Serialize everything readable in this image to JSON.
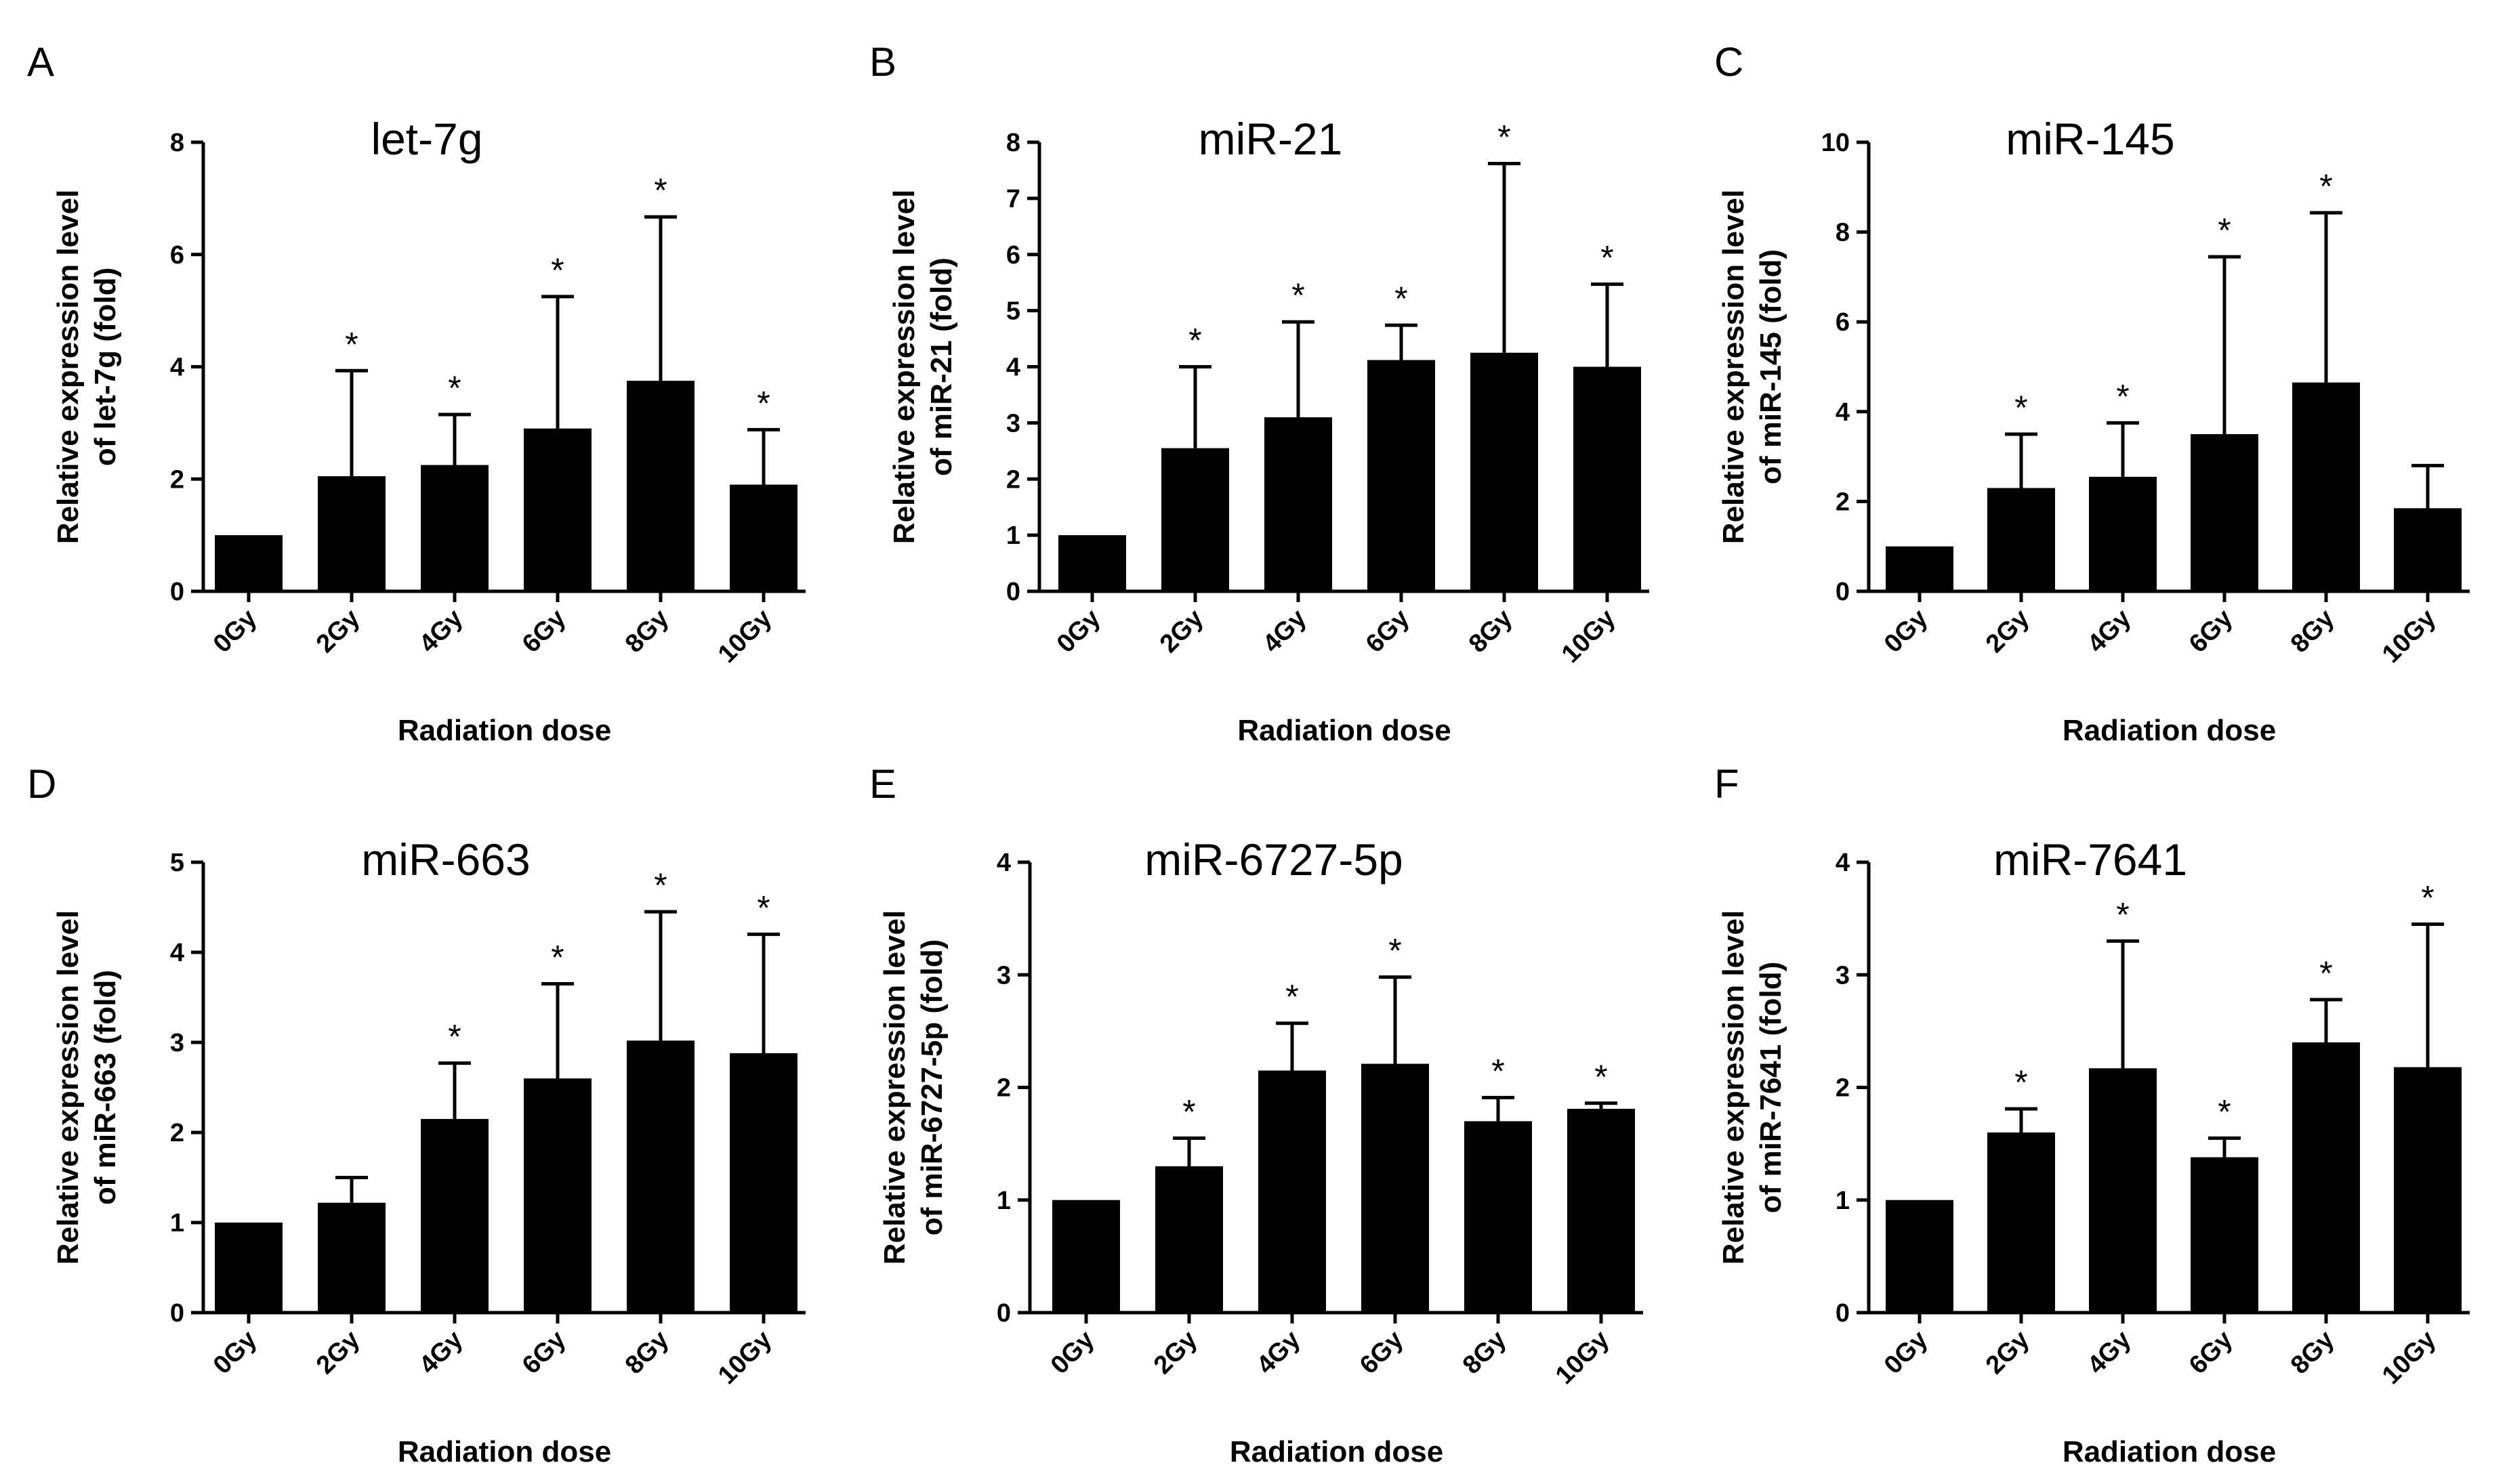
{
  "chart_data": [
    {
      "type": "bar",
      "panel": "A",
      "title": "let-7g",
      "ylabel": [
        "Relative expression level",
        "of let-7g (fold)"
      ],
      "xlabel": "Radiation dose",
      "categories": [
        "0Gy",
        "2Gy",
        "4Gy",
        "6Gy",
        "8Gy",
        "10Gy"
      ],
      "values": [
        1.0,
        2.05,
        2.25,
        2.9,
        3.75,
        1.9
      ],
      "errors": [
        0,
        1.88,
        0.9,
        2.35,
        2.92,
        0.98
      ],
      "significance": [
        "",
        "*",
        "*",
        "*",
        "*",
        "*"
      ],
      "ylim": [
        0,
        8
      ],
      "yticks": [
        0,
        2,
        4,
        6,
        8
      ]
    },
    {
      "type": "bar",
      "panel": "B",
      "title": "miR-21",
      "ylabel": [
        "Relative expression level",
        "of miR-21 (fold)"
      ],
      "xlabel": "Radiation dose",
      "categories": [
        "0Gy",
        "2Gy",
        "4Gy",
        "6Gy",
        "8Gy",
        "10Gy"
      ],
      "values": [
        1.0,
        2.55,
        3.1,
        4.12,
        4.25,
        4.0
      ],
      "errors": [
        0,
        1.45,
        1.7,
        0.62,
        3.37,
        1.47
      ],
      "significance": [
        "",
        "*",
        "*",
        "*",
        "*",
        "*"
      ],
      "ylim": [
        0,
        8
      ],
      "yticks": [
        0,
        1,
        2,
        3,
        4,
        5,
        6,
        7,
        8
      ]
    },
    {
      "type": "bar",
      "panel": "C",
      "title": "miR-145",
      "ylabel": [
        "Relative expression level",
        "of miR-145 (fold)"
      ],
      "xlabel": "Radiation dose",
      "categories": [
        "0Gy",
        "2Gy",
        "4Gy",
        "6Gy",
        "8Gy",
        "10Gy"
      ],
      "values": [
        1.0,
        2.3,
        2.55,
        3.5,
        4.65,
        1.85
      ],
      "errors": [
        0,
        1.2,
        1.2,
        3.95,
        3.78,
        0.95
      ],
      "significance": [
        "",
        "*",
        "*",
        "*",
        "*",
        ""
      ],
      "ylim": [
        0,
        10
      ],
      "yticks": [
        0,
        2,
        4,
        6,
        8,
        10
      ]
    },
    {
      "type": "bar",
      "panel": "D",
      "title": "miR-663",
      "ylabel": [
        "Relative expression level",
        "of miR-663 (fold)"
      ],
      "xlabel": "Radiation dose",
      "categories": [
        "0Gy",
        "2Gy",
        "4Gy",
        "6Gy",
        "8Gy",
        "10Gy"
      ],
      "values": [
        1.0,
        1.22,
        2.15,
        2.6,
        3.02,
        2.88
      ],
      "errors": [
        0,
        0.28,
        0.62,
        1.05,
        1.43,
        1.32
      ],
      "significance": [
        "",
        "",
        "*",
        "*",
        "*",
        "*"
      ],
      "ylim": [
        0,
        5
      ],
      "yticks": [
        0,
        1,
        2,
        3,
        4,
        5
      ]
    },
    {
      "type": "bar",
      "panel": "E",
      "title": "miR-6727-5p",
      "ylabel": [
        "Relative expression level",
        "of miR-6727-5p (fold)"
      ],
      "xlabel": "Radiation dose",
      "categories": [
        "0Gy",
        "2Gy",
        "4Gy",
        "6Gy",
        "8Gy",
        "10Gy"
      ],
      "values": [
        1.0,
        1.3,
        2.15,
        2.21,
        1.7,
        1.81
      ],
      "errors": [
        0,
        0.25,
        0.42,
        0.77,
        0.21,
        0.05
      ],
      "significance": [
        "",
        "*",
        "*",
        "*",
        "*",
        "*"
      ],
      "ylim": [
        0,
        4
      ],
      "yticks": [
        0,
        1,
        2,
        3,
        4
      ]
    },
    {
      "type": "bar",
      "panel": "F",
      "title": "miR-7641",
      "ylabel": [
        "Relative expression level",
        "of miR-7641 (fold)"
      ],
      "xlabel": "Radiation dose",
      "categories": [
        "0Gy",
        "2Gy",
        "4Gy",
        "6Gy",
        "8Gy",
        "10Gy"
      ],
      "values": [
        1.0,
        1.6,
        2.17,
        1.38,
        2.4,
        2.18
      ],
      "errors": [
        0,
        0.21,
        1.13,
        0.17,
        0.38,
        1.27
      ],
      "significance": [
        "",
        "*",
        "*",
        "*",
        "*",
        "*"
      ],
      "ylim": [
        0,
        4
      ],
      "yticks": [
        0,
        1,
        2,
        3,
        4
      ]
    }
  ]
}
